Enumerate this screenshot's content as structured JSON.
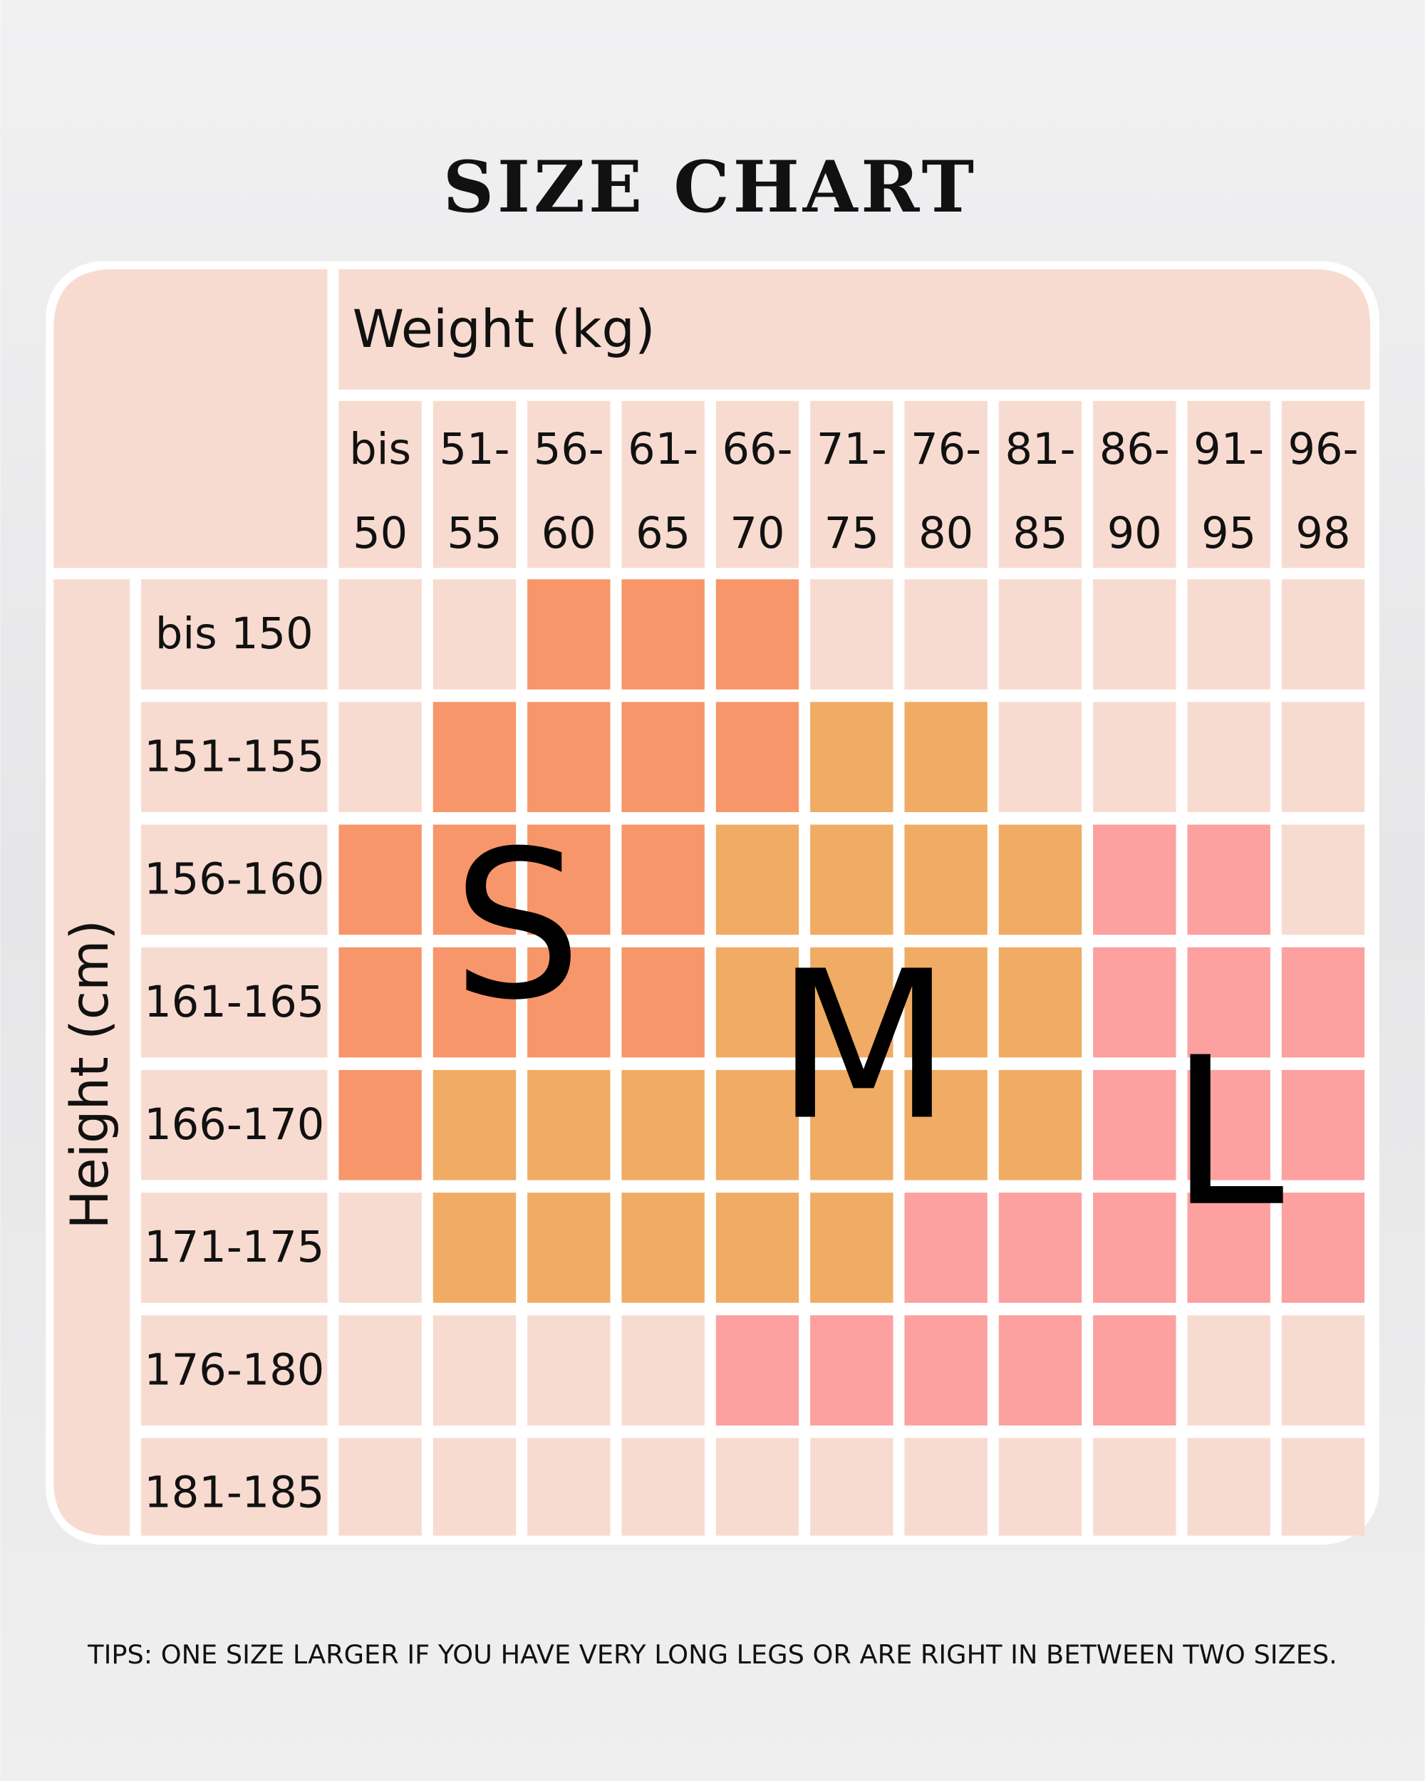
{
  "title": "SIZE CHART",
  "weight_label": "Weight (kg)",
  "height_label": "Height (cm)",
  "columns": [
    [
      "bis",
      "50"
    ],
    [
      "51-",
      "55"
    ],
    [
      "56-",
      "60"
    ],
    [
      "61-",
      "65"
    ],
    [
      "66-",
      "70"
    ],
    [
      "71-",
      "75"
    ],
    [
      "76-",
      "80"
    ],
    [
      "81-",
      "85"
    ],
    [
      "86-",
      "90"
    ],
    [
      "91-",
      "95"
    ],
    [
      "96-",
      "98"
    ]
  ],
  "rows": [
    "bis 150",
    "151-155",
    "156-160",
    "161-165",
    "166-170",
    "171-175",
    "176-180",
    "181-185"
  ],
  "sizes": [
    {
      "label": "S",
      "color": "#f7966a"
    },
    {
      "label": "M",
      "color": "#f0ac64"
    },
    {
      "label": "L",
      "color": "#fda0a0"
    }
  ],
  "empty_color": "#f8dbd0",
  "grid": [
    [
      null,
      null,
      "S",
      "S",
      "S",
      null,
      null,
      null,
      null,
      null,
      null
    ],
    [
      null,
      "S",
      "S",
      "S",
      "S",
      "M",
      "M",
      null,
      null,
      null,
      null
    ],
    [
      "S",
      "S",
      "S",
      "S",
      "M",
      "M",
      "M",
      "M",
      "L",
      "L",
      null
    ],
    [
      "S",
      "S",
      "S",
      "S",
      "M",
      "M",
      "M",
      "M",
      "L",
      "L",
      "L"
    ],
    [
      "S",
      "M",
      "M",
      "M",
      "M",
      "M",
      "M",
      "M",
      "L",
      "L",
      "L"
    ],
    [
      null,
      "M",
      "M",
      "M",
      "M",
      "M",
      "L",
      "L",
      "L",
      "L",
      "L"
    ],
    [
      null,
      null,
      null,
      null,
      "L",
      "L",
      "L",
      "L",
      "L",
      null,
      null
    ],
    [
      null,
      null,
      null,
      null,
      null,
      null,
      null,
      null,
      null,
      null,
      null
    ]
  ],
  "tip": "TIPS: ONE SIZE LARGER IF YOU HAVE VERY LONG LEGS OR ARE RIGHT IN BETWEEN TWO SIZES."
}
